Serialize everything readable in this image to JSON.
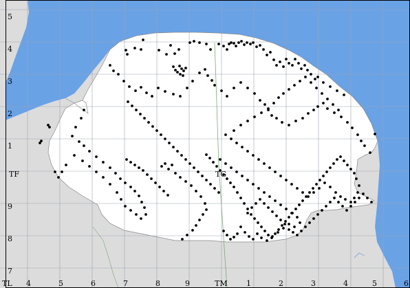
{
  "map": {
    "colors": {
      "sea": "#6aa2e6",
      "land_outside": "#dcdcdc",
      "county": "#ffffff",
      "grid": "#9aa4b0",
      "boundary_line": "#7aa87a",
      "record_dot": "#000000"
    },
    "grid_labels": {
      "left": [
        "5",
        "4",
        "3",
        "2",
        "1",
        "TF",
        "9",
        "8",
        "7"
      ],
      "bottom": [
        "TL",
        "4",
        "5",
        "6",
        "7",
        "8",
        "9",
        "TM",
        "1",
        "2",
        "3",
        "4",
        "5",
        "6"
      ],
      "inner": [
        "TG"
      ]
    }
  }
}
